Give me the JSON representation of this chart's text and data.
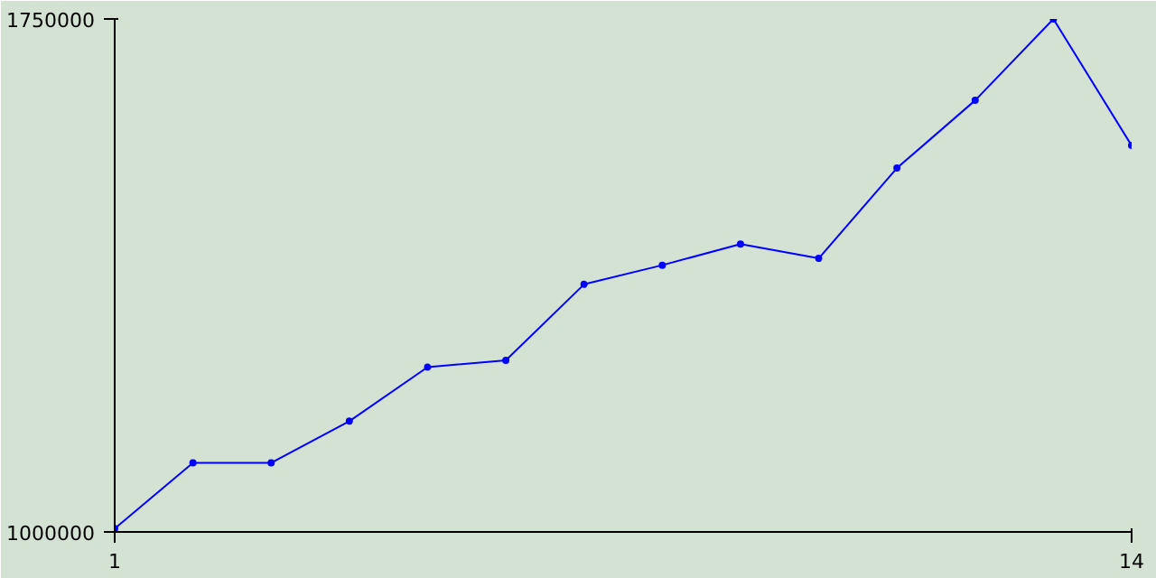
{
  "chart_data": {
    "type": "line",
    "x": [
      1,
      2,
      3,
      4,
      5,
      6,
      7,
      8,
      9,
      10,
      11,
      12,
      13,
      14
    ],
    "series": [
      {
        "color": "#0000ff",
        "values": [
          1005000,
          1101000,
          1101000,
          1162000,
          1241000,
          1251000,
          1362000,
          1390000,
          1421000,
          1400000,
          1532000,
          1631000,
          1750000,
          1565000
        ]
      }
    ],
    "xlim": [
      1,
      14
    ],
    "ylim": [
      1000000,
      1750000
    ],
    "xticks": [
      1,
      14
    ],
    "yticks": [
      {
        "value": 1000000,
        "label": "1000000"
      },
      {
        "value": 1750000,
        "label": "1750000"
      }
    ],
    "marker": "circle",
    "line_style": "solid"
  }
}
